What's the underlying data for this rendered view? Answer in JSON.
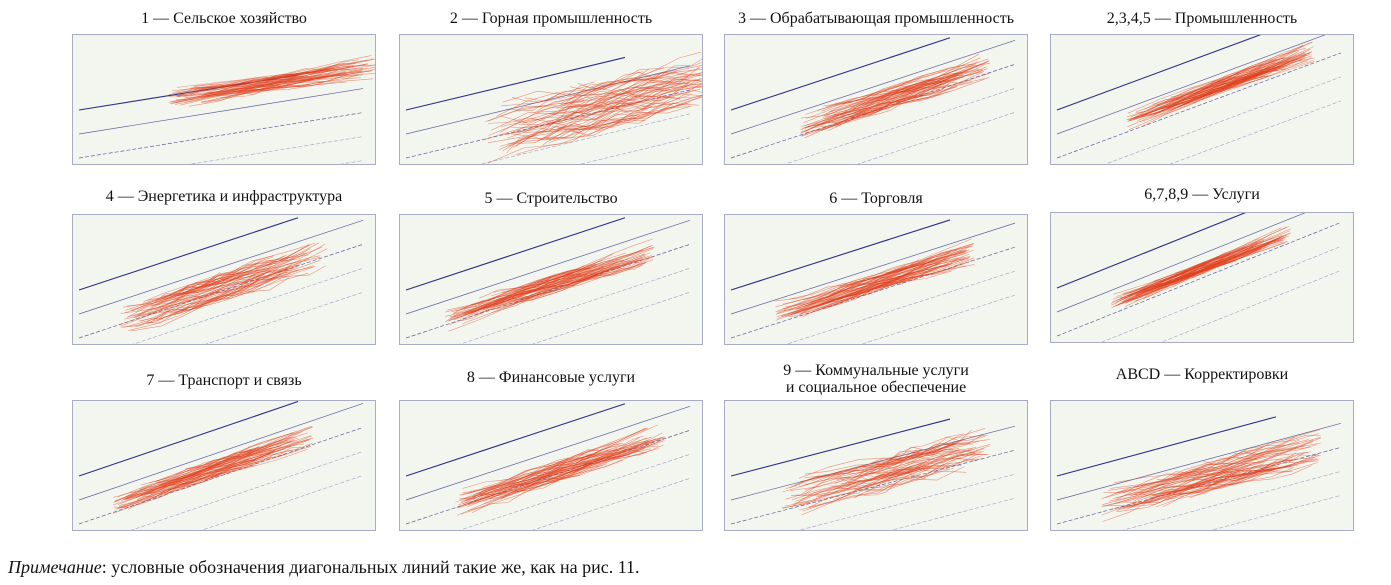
{
  "colors": {
    "guide_dark": "#2b2f86",
    "guide_light": "#8f93c4",
    "trajectory": "#e0401e",
    "panel_bg": "#f3f6ef",
    "panel_border": "#a9acc7"
  },
  "panels": [
    {
      "title": "1 — Сельское хозяйство"
    },
    {
      "title": "2 — Горная промышленность"
    },
    {
      "title": "3 — Обрабатывающая промышленность"
    },
    {
      "title": "2,3,4,5 — Промышленность"
    },
    {
      "title": "4 — Энергетика и инфраструктура"
    },
    {
      "title": "5 — Строительство"
    },
    {
      "title": "6 — Торговля"
    },
    {
      "title": "6,7,8,9 — Услуги"
    },
    {
      "title": "7 — Транспорт и связь"
    },
    {
      "title": "8 — Финансовые услуги"
    },
    {
      "title_line1": "9 — Коммунальные услуги",
      "title_line2": "и социальное обеспечение"
    },
    {
      "title": "ABCD — Корректировки"
    }
  ],
  "note": {
    "label": "Примечание",
    "text": ": условные обозначения диагональных линий такие же, как на рис. 11."
  }
}
